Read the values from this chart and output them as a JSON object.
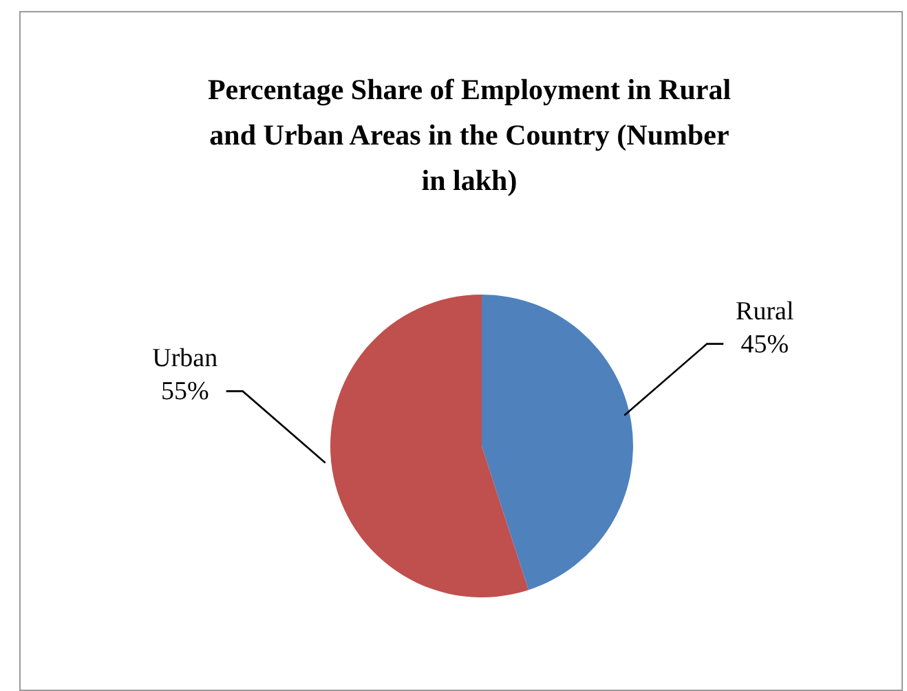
{
  "chart_data": {
    "type": "pie",
    "title": "Percentage Share of Employment in Rural and Urban Areas in the Country (Number in lakh)",
    "categories": [
      "Rural",
      "Urban"
    ],
    "values": [
      45,
      55
    ],
    "value_labels": [
      "45%",
      "55%"
    ],
    "colors": [
      "#4f81bd",
      "#c0504d"
    ]
  }
}
